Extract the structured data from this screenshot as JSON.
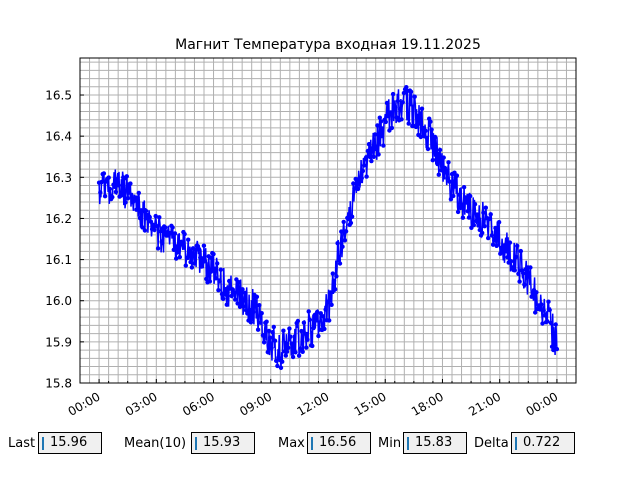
{
  "chart_data": {
    "type": "line",
    "title": "Магнит Температура входная 19.11.2025",
    "xlabel": "",
    "ylabel": "",
    "x_unit": "hours since 00:00",
    "xlim": [
      -1.0,
      25.0
    ],
    "ylim": [
      15.8,
      16.59
    ],
    "x_ticks": [
      0,
      3,
      6,
      9,
      12,
      15,
      18,
      21,
      24
    ],
    "x_tick_labels": [
      "00:00",
      "03:00",
      "06:00",
      "09:00",
      "12:00",
      "15:00",
      "18:00",
      "21:00",
      "00:00"
    ],
    "y_ticks": [
      15.8,
      15.9,
      16.0,
      16.1,
      16.2,
      16.3,
      16.4,
      16.5
    ],
    "y_tick_labels": [
      "15.8",
      "15.9",
      "16.0",
      "16.1",
      "16.2",
      "16.3",
      "16.4",
      "16.5"
    ],
    "grid": true,
    "minor_grid": true,
    "series": [
      {
        "color": "#0000ff",
        "marker": "circle",
        "trend_x": [
          0.0,
          0.5,
          1.0,
          1.5,
          2.0,
          2.5,
          3.0,
          3.5,
          4.0,
          4.5,
          5.0,
          5.5,
          6.0,
          6.5,
          7.0,
          7.5,
          8.0,
          8.5,
          9.0,
          9.5,
          10.0,
          10.5,
          11.0,
          11.5,
          12.0,
          12.5,
          13.0,
          13.5,
          14.0,
          14.5,
          15.0,
          15.5,
          16.0,
          16.5,
          17.0,
          17.5,
          18.0,
          18.5,
          19.0,
          19.5,
          20.0,
          20.5,
          21.0,
          21.5,
          22.0,
          22.5,
          23.0,
          23.5,
          24.0
        ],
        "trend_y": [
          16.27,
          16.28,
          16.28,
          16.26,
          16.23,
          16.2,
          16.17,
          16.15,
          16.14,
          16.13,
          16.12,
          16.1,
          16.07,
          16.04,
          16.02,
          16.01,
          15.99,
          15.95,
          15.9,
          15.88,
          15.89,
          15.91,
          15.93,
          15.94,
          15.98,
          16.1,
          16.2,
          16.28,
          16.33,
          16.38,
          16.43,
          16.47,
          16.48,
          16.46,
          16.43,
          16.38,
          16.33,
          16.28,
          16.25,
          16.22,
          16.2,
          16.18,
          16.15,
          16.12,
          16.09,
          16.05,
          16.0,
          15.96,
          15.9
        ],
        "noise_amplitude": 0.045
      }
    ],
    "stats": [
      {
        "label": "Last",
        "value": "15.96"
      },
      {
        "label": "Mean(10)",
        "value": "15.93"
      },
      {
        "label": "Max",
        "value": "16.56"
      },
      {
        "label": "Min",
        "value": "15.83"
      },
      {
        "label": "Delta",
        "value": "0.722"
      }
    ]
  }
}
